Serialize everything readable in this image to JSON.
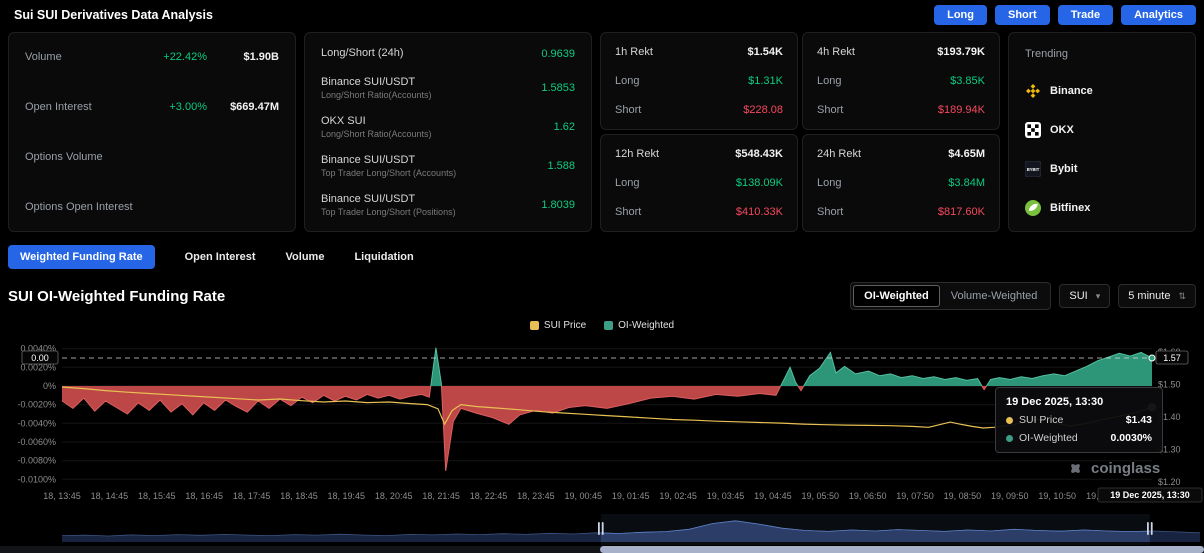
{
  "header": {
    "title": "Sui SUI Derivatives Data Analysis",
    "actions": [
      {
        "label": "Long"
      },
      {
        "label": "Short"
      },
      {
        "label": "Trade"
      },
      {
        "label": "Analytics"
      }
    ]
  },
  "stats_card": {
    "rows": [
      {
        "label": "Volume",
        "change": "+22.42%",
        "value": "$1.90B"
      },
      {
        "label": "Open Interest",
        "change": "+3.00%",
        "value": "$669.47M"
      },
      {
        "label": "Options Volume",
        "change": "",
        "value": ""
      },
      {
        "label": "Options Open Interest",
        "change": "",
        "value": ""
      }
    ]
  },
  "ratio_card": {
    "rows": [
      {
        "label": "Long/Short (24h)",
        "sub": "",
        "value": "0.9639"
      },
      {
        "label": "Binance SUI/USDT",
        "sub": "Long/Short Ratio(Accounts)",
        "value": "1.5853"
      },
      {
        "label": "OKX SUI",
        "sub": "Long/Short Ratio(Accounts)",
        "value": "1.62"
      },
      {
        "label": "Binance SUI/USDT",
        "sub": "Top Trader Long/Short (Accounts)",
        "value": "1.588"
      },
      {
        "label": "Binance SUI/USDT",
        "sub": "Top Trader Long/Short (Positions)",
        "value": "1.8039"
      }
    ]
  },
  "rekt_labels": {
    "long": "Long",
    "short": "Short"
  },
  "rekt_cards": [
    {
      "title": "1h Rekt",
      "total": "$1.54K",
      "long": "$1.31K",
      "short": "$228.08"
    },
    {
      "title": "4h Rekt",
      "total": "$193.79K",
      "long": "$3.85K",
      "short": "$189.94K"
    },
    {
      "title": "12h Rekt",
      "total": "$548.43K",
      "long": "$138.09K",
      "short": "$410.33K"
    },
    {
      "title": "24h Rekt",
      "total": "$4.65M",
      "long": "$3.84M",
      "short": "$817.60K"
    }
  ],
  "trending": {
    "title": "Trending",
    "items": [
      {
        "name": "Binance",
        "icon": "binance-icon"
      },
      {
        "name": "OKX",
        "icon": "okx-icon"
      },
      {
        "name": "Bybit",
        "icon": "bybit-icon"
      },
      {
        "name": "Bitfinex",
        "icon": "bitfinex-icon"
      }
    ]
  },
  "tabs": [
    {
      "label": "Weighted Funding Rate",
      "active": true
    },
    {
      "label": "Open Interest",
      "active": false
    },
    {
      "label": "Volume",
      "active": false
    },
    {
      "label": "Liquidation",
      "active": false
    }
  ],
  "chart_header": {
    "title": "SUI OI-Weighted Funding Rate",
    "toggle": [
      {
        "label": "OI-Weighted",
        "active": true
      },
      {
        "label": "Volume-Weighted",
        "active": false
      }
    ],
    "symbol_select": "SUI",
    "interval_select": "5 minute"
  },
  "tooltip": {
    "date": "19 Dec 2025, 13:30",
    "rows": [
      {
        "label": "SUI Price",
        "value": "$1.43",
        "color": "#e9c054"
      },
      {
        "label": "OI-Weighted",
        "value": "0.0030%",
        "color": "#3c9e86"
      }
    ]
  },
  "watermark": "coinglass",
  "chart_data": {
    "type": "area",
    "title": "SUI OI-Weighted Funding Rate",
    "legend": [
      {
        "name": "SUI Price",
        "color": "#e9c054"
      },
      {
        "name": "OI-Weighted",
        "color": "#3c9e86"
      }
    ],
    "left_axis": {
      "label": "funding rate %",
      "domain": [
        0.0045,
        -0.0105
      ],
      "ticks": [
        {
          "v": 0.004,
          "label": "0.0040%"
        },
        {
          "v": 0.002,
          "label": "0.0020%"
        },
        {
          "v": 0,
          "label": "0%"
        },
        {
          "v": -0.002,
          "label": "-0.0020%"
        },
        {
          "v": -0.004,
          "label": "-0.0040%"
        },
        {
          "v": -0.006,
          "label": "-0.0060%"
        },
        {
          "v": -0.008,
          "label": "-0.0080%"
        },
        {
          "v": -0.01,
          "label": "-0.0100%"
        }
      ]
    },
    "right_axis": {
      "label": "SUI price $",
      "domain": [
        1.624,
        1.194
      ],
      "ticks": [
        {
          "v": 1.6,
          "label": "$1.60"
        },
        {
          "v": 1.5,
          "label": "$1.50"
        },
        {
          "v": 1.4,
          "label": "$1.40"
        },
        {
          "v": 1.3,
          "label": "$1.30"
        },
        {
          "v": 1.2,
          "label": "$1.20"
        }
      ]
    },
    "marker": {
      "value": 0.003,
      "left_label": "0.00",
      "right_label": "1.57"
    },
    "x_labels": [
      "18, 13:45",
      "18, 14:45",
      "18, 15:45",
      "18, 16:45",
      "18, 17:45",
      "18, 18:45",
      "18, 19:45",
      "18, 20:45",
      "18, 21:45",
      "18, 22:45",
      "18, 23:45",
      "19, 00:45",
      "19, 01:45",
      "19, 02:45",
      "19, 03:45",
      "19, 04:45",
      "19, 05:50",
      "19, 06:50",
      "19, 07:50",
      "19, 08:50",
      "19, 09:50",
      "19, 10:50",
      "19, 11:50",
      "19 Dec 2025, 13:30"
    ],
    "series": [
      {
        "name": "OI-Weighted",
        "type": "area",
        "axis": "left",
        "pos_color": "#2f9e7e",
        "neg_color": "#c74a4a",
        "pos_line": "#54c0a0",
        "neg_line": "#dd5f5f",
        "points": [
          [
            0,
            -0.0016
          ],
          [
            1,
            -0.0024
          ],
          [
            2,
            -0.0013
          ],
          [
            3,
            -0.0027
          ],
          [
            4,
            -0.0016
          ],
          [
            5,
            -0.0023
          ],
          [
            6,
            -0.003
          ],
          [
            7,
            -0.0018
          ],
          [
            8,
            -0.0026
          ],
          [
            9,
            -0.0015
          ],
          [
            10,
            -0.0028
          ],
          [
            11,
            -0.0019
          ],
          [
            12,
            -0.0031
          ],
          [
            13,
            -0.0018
          ],
          [
            14,
            -0.0026
          ],
          [
            15,
            -0.0015
          ],
          [
            16,
            -0.0022
          ],
          [
            17,
            -0.0028
          ],
          [
            18,
            -0.0016
          ],
          [
            19,
            -0.0024
          ],
          [
            20,
            -0.0014
          ],
          [
            21,
            -0.0021
          ],
          [
            22,
            -0.0012
          ],
          [
            23,
            -0.0018
          ],
          [
            24,
            -0.001
          ],
          [
            25,
            -0.0016
          ],
          [
            26,
            -0.0011
          ],
          [
            27,
            -0.0015
          ],
          [
            28,
            -0.0009
          ],
          [
            29,
            -0.0013
          ],
          [
            30,
            -0.001
          ],
          [
            31,
            -0.0014
          ],
          [
            32,
            -0.0011
          ],
          [
            33,
            -0.0009
          ],
          [
            33.7,
            -0.0012
          ],
          [
            34.3,
            0.0041
          ],
          [
            34.8,
            0.0003
          ],
          [
            35.2,
            -0.0091
          ],
          [
            35.9,
            -0.0038
          ],
          [
            36.6,
            -0.0024
          ],
          [
            38,
            -0.0029
          ],
          [
            39.5,
            -0.0034
          ],
          [
            41,
            -0.0041
          ],
          [
            42,
            -0.0031
          ],
          [
            43.5,
            -0.0026
          ],
          [
            45,
            -0.0029
          ],
          [
            46.5,
            -0.0023
          ],
          [
            48,
            -0.0021
          ],
          [
            50,
            -0.0024
          ],
          [
            52,
            -0.0019
          ],
          [
            54,
            -0.0013
          ],
          [
            56,
            -0.0011
          ],
          [
            58,
            -0.0014
          ],
          [
            60,
            -0.0009
          ],
          [
            62,
            -0.0011
          ],
          [
            64,
            -0.0008
          ],
          [
            65.5,
            -0.001
          ],
          [
            66.8,
            0.002
          ],
          [
            67.3,
            0.0004
          ],
          [
            67.8,
            -0.0005
          ],
          [
            68.6,
            0.0011
          ],
          [
            69.5,
            0.0019
          ],
          [
            70.5,
            0.0036
          ],
          [
            71,
            0.0014
          ],
          [
            71.8,
            0.0021
          ],
          [
            72.8,
            0.0013
          ],
          [
            74,
            0.0016
          ],
          [
            75,
            0.0011
          ],
          [
            76,
            0.0013
          ],
          [
            77,
            0.0009
          ],
          [
            78,
            0.0011
          ],
          [
            79,
            0.0008
          ],
          [
            80,
            0.001
          ],
          [
            81,
            0.0007
          ],
          [
            82,
            0.0009
          ],
          [
            83,
            0.0006
          ],
          [
            84,
            0.0008
          ],
          [
            84.6,
            -0.0004
          ],
          [
            85.2,
            0.0007
          ],
          [
            86,
            0.0009
          ],
          [
            87,
            0.0007
          ],
          [
            88,
            0.001
          ],
          [
            89,
            0.0008
          ],
          [
            90,
            0.0011
          ],
          [
            91,
            0.0013
          ],
          [
            92,
            0.0011
          ],
          [
            93,
            0.0016
          ],
          [
            94,
            0.0021
          ],
          [
            95,
            0.0027
          ],
          [
            96,
            0.0031
          ],
          [
            97,
            0.0035
          ],
          [
            98,
            0.0032
          ],
          [
            99,
            0.0036
          ],
          [
            100,
            0.003
          ]
        ]
      },
      {
        "name": "SUI Price",
        "type": "line",
        "axis": "right",
        "color": "#e9c054",
        "points": [
          [
            0,
            1.492
          ],
          [
            2,
            1.487
          ],
          [
            4,
            1.481
          ],
          [
            6,
            1.476
          ],
          [
            8,
            1.472
          ],
          [
            10,
            1.468
          ],
          [
            12,
            1.464
          ],
          [
            14,
            1.46
          ],
          [
            16,
            1.456
          ],
          [
            18,
            1.452
          ],
          [
            20,
            1.455
          ],
          [
            22,
            1.45
          ],
          [
            24,
            1.446
          ],
          [
            26,
            1.449
          ],
          [
            28,
            1.444
          ],
          [
            30,
            1.446
          ],
          [
            32,
            1.441
          ],
          [
            33.5,
            1.438
          ],
          [
            34.5,
            1.425
          ],
          [
            35.1,
            1.378
          ],
          [
            35.8,
            1.42
          ],
          [
            36.6,
            1.438
          ],
          [
            38,
            1.432
          ],
          [
            40,
            1.427
          ],
          [
            42,
            1.422
          ],
          [
            44,
            1.416
          ],
          [
            46,
            1.412
          ],
          [
            48,
            1.408
          ],
          [
            50,
            1.404
          ],
          [
            52,
            1.4
          ],
          [
            54,
            1.396
          ],
          [
            56,
            1.392
          ],
          [
            58,
            1.39
          ],
          [
            60,
            1.387
          ],
          [
            62,
            1.385
          ],
          [
            64,
            1.383
          ],
          [
            66,
            1.381
          ],
          [
            68,
            1.378
          ],
          [
            70,
            1.376
          ],
          [
            72,
            1.375
          ],
          [
            74,
            1.374
          ],
          [
            76,
            1.373
          ],
          [
            78,
            1.371
          ],
          [
            79.5,
            1.368
          ],
          [
            80.5,
            1.376
          ],
          [
            81.5,
            1.384
          ],
          [
            82.5,
            1.377
          ],
          [
            83.5,
            1.371
          ],
          [
            84.5,
            1.366
          ],
          [
            85.5,
            1.368
          ],
          [
            86.5,
            1.372
          ],
          [
            87.5,
            1.378
          ],
          [
            88.5,
            1.385
          ],
          [
            89.5,
            1.392
          ],
          [
            90.5,
            1.388
          ],
          [
            91.5,
            1.379
          ],
          [
            92.5,
            1.372
          ],
          [
            93.5,
            1.377
          ],
          [
            94.5,
            1.384
          ],
          [
            95.5,
            1.392
          ],
          [
            96.5,
            1.399
          ],
          [
            97.5,
            1.406
          ],
          [
            98.5,
            1.413
          ],
          [
            99.5,
            1.424
          ],
          [
            100,
            1.43
          ]
        ]
      }
    ],
    "navigator": {
      "values": [
        0.28,
        0.3,
        0.26,
        0.31,
        0.28,
        0.32,
        0.29,
        0.33,
        0.3,
        0.28,
        0.32,
        0.3,
        0.34,
        0.3,
        0.28,
        0.33,
        0.31,
        0.35,
        0.32,
        0.36,
        0.33,
        0.38,
        0.35,
        0.4,
        0.37,
        0.42,
        0.45,
        0.55,
        0.8,
        0.92,
        0.78,
        0.6,
        0.5,
        0.46,
        0.52,
        0.48,
        0.54,
        0.5,
        0.46,
        0.52,
        0.48,
        0.55,
        0.5,
        0.47,
        0.52,
        0.48,
        0.45,
        0.48,
        0.44,
        0.4
      ],
      "selection": [
        49.9,
        95.5
      ],
      "scrollbar": [
        49.8,
        100
      ]
    }
  }
}
